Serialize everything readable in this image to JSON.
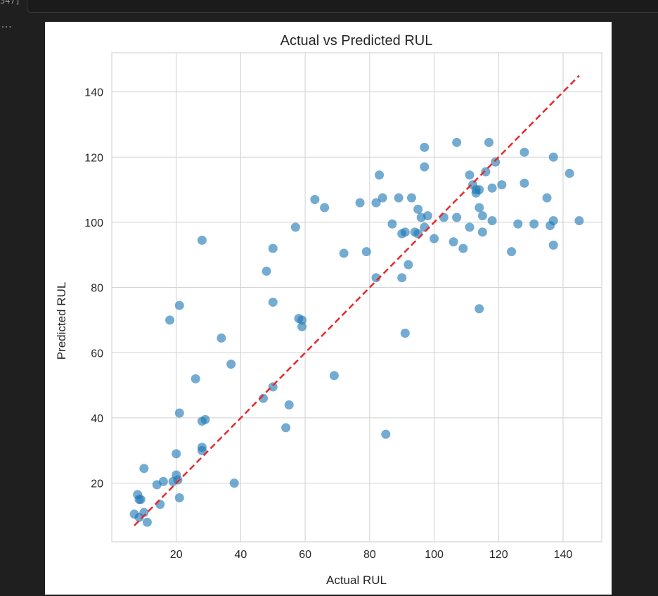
{
  "cell": {
    "execution_count": "347]",
    "output_prompt": "···"
  },
  "colors": {
    "points": "#1f77b4",
    "reference_line": "#e8282b",
    "grid": "#d0d0d0",
    "background": "#ffffff",
    "editor_background": "#1f1f1f"
  },
  "chart_data": {
    "type": "scatter",
    "title": "Actual vs Predicted RUL",
    "xlabel": "Actual RUL",
    "ylabel": "Predicted RUL",
    "xlim": [
      0,
      152
    ],
    "ylim": [
      2,
      152
    ],
    "x_ticks": [
      20,
      40,
      60,
      80,
      100,
      120,
      140
    ],
    "y_ticks": [
      20,
      40,
      60,
      80,
      100,
      120,
      140
    ],
    "grid": true,
    "reference_line": {
      "style": "dashed",
      "from": [
        7,
        7
      ],
      "to": [
        145,
        145
      ]
    },
    "points": [
      [
        7,
        10.5
      ],
      [
        8,
        16.5
      ],
      [
        8.5,
        15
      ],
      [
        9,
        15
      ],
      [
        8.5,
        9.5
      ],
      [
        10,
        11
      ],
      [
        11,
        8
      ],
      [
        10,
        24.5
      ],
      [
        14,
        19.5
      ],
      [
        15,
        13.5
      ],
      [
        16,
        20.5
      ],
      [
        18,
        70
      ],
      [
        19,
        20.5
      ],
      [
        20,
        22.5
      ],
      [
        20,
        29
      ],
      [
        20.5,
        21
      ],
      [
        21,
        15.5
      ],
      [
        21,
        41.5
      ],
      [
        21,
        74.5
      ],
      [
        26,
        52
      ],
      [
        28,
        94.5
      ],
      [
        28,
        39
      ],
      [
        28,
        31
      ],
      [
        28,
        30
      ],
      [
        29,
        39.5
      ],
      [
        34,
        64.5
      ],
      [
        37,
        56.5
      ],
      [
        38,
        20
      ],
      [
        47,
        46
      ],
      [
        48,
        85
      ],
      [
        50,
        75.5
      ],
      [
        50,
        92
      ],
      [
        50,
        49.5
      ],
      [
        54,
        37
      ],
      [
        55,
        44
      ],
      [
        57,
        98.5
      ],
      [
        58,
        70.5
      ],
      [
        59,
        68
      ],
      [
        59,
        70
      ],
      [
        63,
        107
      ],
      [
        66,
        104.5
      ],
      [
        69,
        53
      ],
      [
        72,
        90.5
      ],
      [
        77,
        106
      ],
      [
        79,
        91
      ],
      [
        82,
        83
      ],
      [
        82,
        106
      ],
      [
        83,
        114.5
      ],
      [
        84,
        107.5
      ],
      [
        85,
        35
      ],
      [
        87,
        99.5
      ],
      [
        89,
        107.5
      ],
      [
        90,
        83
      ],
      [
        90,
        96.5
      ],
      [
        91,
        97
      ],
      [
        91,
        66
      ],
      [
        92,
        87
      ],
      [
        93,
        107.5
      ],
      [
        94,
        97
      ],
      [
        95,
        96.5
      ],
      [
        95,
        104
      ],
      [
        96,
        101.5
      ],
      [
        97,
        123
      ],
      [
        97,
        117
      ],
      [
        97,
        98.5
      ],
      [
        98,
        102
      ],
      [
        100,
        95
      ],
      [
        103,
        101.5
      ],
      [
        106,
        94
      ],
      [
        107,
        124.5
      ],
      [
        107,
        101.5
      ],
      [
        109,
        92
      ],
      [
        111,
        114.5
      ],
      [
        111,
        98.5
      ],
      [
        112,
        111.5
      ],
      [
        113,
        110
      ],
      [
        113,
        109
      ],
      [
        114,
        104.5
      ],
      [
        114,
        110
      ],
      [
        114,
        73.5
      ],
      [
        115,
        97
      ],
      [
        115,
        102
      ],
      [
        116,
        115.5
      ],
      [
        117,
        124.5
      ],
      [
        118,
        100.5
      ],
      [
        118,
        110.5
      ],
      [
        119,
        118.5
      ],
      [
        121,
        111.5
      ],
      [
        124,
        91
      ],
      [
        126,
        99.5
      ],
      [
        128,
        121.5
      ],
      [
        128,
        112
      ],
      [
        131,
        99.5
      ],
      [
        135,
        107.5
      ],
      [
        136,
        99
      ],
      [
        137,
        120
      ],
      [
        137,
        100.5
      ],
      [
        137,
        93
      ],
      [
        142,
        115
      ],
      [
        145,
        100.5
      ]
    ]
  }
}
